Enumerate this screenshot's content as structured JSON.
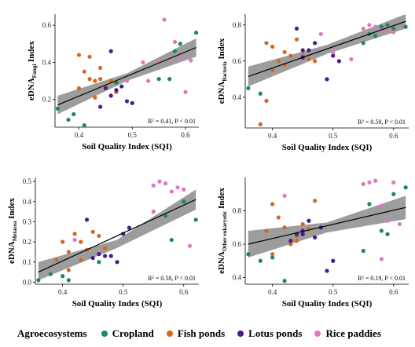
{
  "colors": {
    "Cropland": "#1a8a5a",
    "Fish ponds": "#d8661c",
    "Lotus ponds": "#4b1a8c",
    "Rice paddies": "#e276c3",
    "band": "#8c8c8c",
    "line": "#000000"
  },
  "legend": {
    "title": "Agroecosystems",
    "items": [
      "Cropland",
      "Fish ponds",
      "Lotus ponds",
      "Rice paddies"
    ]
  },
  "chart_data": [
    {
      "type": "scatter",
      "xlabel": "Soil Quality Index (SQI)",
      "ylabel_main": "eDNA",
      "ylabel_sub": "Fungi",
      "ylabel_suffix": " Index",
      "stats": "R² = 0.41,   P < 0.01",
      "xlim": [
        0.355,
        0.625
      ],
      "ylim": [
        0.05,
        0.66
      ],
      "xticks": [
        0.4,
        0.5,
        0.6
      ],
      "xtick_labels": [
        "0.4",
        "0.5",
        "0.6"
      ],
      "yticks": [
        0.2,
        0.4,
        0.6
      ],
      "ytick_labels": [
        "0.2",
        "0.4",
        "0.6"
      ],
      "fit": {
        "x": [
          0.36,
          0.62
        ],
        "y": [
          0.17,
          0.48
        ]
      },
      "band": {
        "x": [
          0.36,
          0.49,
          0.62
        ],
        "upper": [
          0.22,
          0.34,
          0.53
        ],
        "lower": [
          0.12,
          0.3,
          0.43
        ]
      },
      "series": [
        {
          "name": "Cropland",
          "x": [
            0.36,
            0.38,
            0.41,
            0.55,
            0.57,
            0.58,
            0.59,
            0.62,
            0.47,
            0.39
          ],
          "y": [
            0.15,
            0.09,
            0.06,
            0.31,
            0.31,
            0.46,
            0.5,
            0.56,
            0.29,
            0.12
          ]
        },
        {
          "name": "Fish ponds",
          "x": [
            0.4,
            0.41,
            0.42,
            0.43,
            0.44,
            0.42,
            0.45,
            0.47,
            0.43,
            0.44,
            0.4,
            0.46
          ],
          "y": [
            0.44,
            0.35,
            0.31,
            0.3,
            0.37,
            0.43,
            0.27,
            0.24,
            0.21,
            0.31,
            0.26,
            0.3
          ]
        },
        {
          "name": "Lotus ponds",
          "x": [
            0.45,
            0.46,
            0.48,
            0.49,
            0.5,
            0.46,
            0.47,
            0.44
          ],
          "y": [
            0.26,
            0.46,
            0.27,
            0.19,
            0.18,
            0.22,
            0.25,
            0.16
          ]
        },
        {
          "name": "Rice paddies",
          "x": [
            0.55,
            0.56,
            0.58,
            0.59,
            0.6,
            0.57,
            0.53,
            0.52,
            0.49,
            0.61
          ],
          "y": [
            0.41,
            0.63,
            0.51,
            0.43,
            0.24,
            0.42,
            0.3,
            0.4,
            0.3,
            0.41
          ]
        }
      ]
    },
    {
      "type": "scatter",
      "xlabel": "Soil Quality Index (SQI)",
      "ylabel_main": "eDNA",
      "ylabel_sub": "Bacteria",
      "ylabel_suffix": " Index",
      "stats": "R² = 0.50,   P < 0.01",
      "xlim": [
        0.355,
        0.625
      ],
      "ylim": [
        0.23,
        0.86
      ],
      "xticks": [
        0.4,
        0.5,
        0.6
      ],
      "xtick_labels": [
        "0.4",
        "0.5",
        "0.6"
      ],
      "yticks": [
        0.4,
        0.6,
        0.8
      ],
      "ytick_labels": [
        "0.4",
        "0.6",
        "0.8"
      ],
      "fit": {
        "x": [
          0.36,
          0.62
        ],
        "y": [
          0.515,
          0.82
        ]
      },
      "band": {
        "x": [
          0.36,
          0.49,
          0.62
        ],
        "upper": [
          0.57,
          0.69,
          0.86
        ],
        "lower": [
          0.46,
          0.64,
          0.78
        ]
      },
      "series": [
        {
          "name": "Cropland",
          "x": [
            0.36,
            0.38,
            0.55,
            0.56,
            0.58,
            0.59,
            0.6,
            0.62,
            0.57
          ],
          "y": [
            0.45,
            0.42,
            0.7,
            0.75,
            0.79,
            0.8,
            0.78,
            0.79,
            0.74
          ]
        },
        {
          "name": "Fish ponds",
          "x": [
            0.38,
            0.39,
            0.4,
            0.41,
            0.42,
            0.43,
            0.44,
            0.45,
            0.46,
            0.47,
            0.4,
            0.39,
            0.42
          ],
          "y": [
            0.25,
            0.38,
            0.68,
            0.6,
            0.65,
            0.63,
            0.72,
            0.63,
            0.61,
            0.6,
            0.55,
            0.7,
            0.58
          ]
        },
        {
          "name": "Lotus ponds",
          "x": [
            0.44,
            0.45,
            0.46,
            0.47,
            0.49,
            0.5,
            0.51,
            0.45
          ],
          "y": [
            0.78,
            0.62,
            0.66,
            0.7,
            0.5,
            0.63,
            0.6,
            0.66
          ]
        },
        {
          "name": "Rice paddies",
          "x": [
            0.48,
            0.5,
            0.53,
            0.55,
            0.56,
            0.57,
            0.58,
            0.59,
            0.6
          ],
          "y": [
            0.75,
            0.65,
            0.61,
            0.78,
            0.8,
            0.79,
            0.77,
            0.78,
            0.76
          ]
        }
      ]
    },
    {
      "type": "scatter",
      "xlabel": "Soil Quality Index (SQI)",
      "ylabel_main": "eDNA",
      "ylabel_sub": "Metazoa",
      "ylabel_suffix": " Index",
      "stats": "R² = 0.58,   P < 0.01",
      "xlim": [
        0.355,
        0.625
      ],
      "ylim": [
        -0.01,
        0.52
      ],
      "xticks": [
        0.4,
        0.5,
        0.6
      ],
      "xtick_labels": [
        "0.4",
        "0.5",
        "0.6"
      ],
      "yticks": [
        0.0,
        0.1,
        0.2,
        0.3,
        0.4,
        0.5
      ],
      "ytick_labels": [
        "0.0",
        "0.1",
        "0.2",
        "0.3",
        "0.4",
        "0.5"
      ],
      "fit": {
        "x": [
          0.36,
          0.62
        ],
        "y": [
          0.05,
          0.41
        ]
      },
      "band": {
        "x": [
          0.36,
          0.49,
          0.62
        ],
        "upper": [
          0.1,
          0.21,
          0.46
        ],
        "lower": [
          0.01,
          0.17,
          0.36
        ]
      },
      "series": [
        {
          "name": "Cropland",
          "x": [
            0.36,
            0.38,
            0.41,
            0.55,
            0.57,
            0.58,
            0.6,
            0.62,
            0.46,
            0.4
          ],
          "y": [
            0.01,
            0.04,
            0.01,
            0.35,
            0.33,
            0.21,
            0.4,
            0.31,
            0.1,
            0.03
          ]
        },
        {
          "name": "Fish ponds",
          "x": [
            0.39,
            0.4,
            0.41,
            0.42,
            0.43,
            0.44,
            0.45,
            0.46,
            0.47,
            0.41,
            0.43
          ],
          "y": [
            0.11,
            0.2,
            0.15,
            0.24,
            0.2,
            0.16,
            0.25,
            0.23,
            0.17,
            0.06,
            0.11
          ]
        },
        {
          "name": "Lotus ponds",
          "x": [
            0.44,
            0.45,
            0.46,
            0.47,
            0.49,
            0.5,
            0.51,
            0.48
          ],
          "y": [
            0.31,
            0.12,
            0.14,
            0.13,
            0.1,
            0.24,
            0.27,
            0.13
          ]
        },
        {
          "name": "Rice paddies",
          "x": [
            0.42,
            0.55,
            0.56,
            0.57,
            0.58,
            0.59,
            0.6,
            0.61,
            0.55
          ],
          "y": [
            0.21,
            0.48,
            0.5,
            0.49,
            0.45,
            0.47,
            0.46,
            0.18,
            0.35
          ]
        }
      ]
    },
    {
      "type": "scatter",
      "xlabel": "Soil Quality Index (SQI)",
      "ylabel_main": "eDNA",
      "ylabel_sub": "Other eukaryotic",
      "ylabel_suffix": " Index",
      "stats": "R² = 0.19,   P < 0.01",
      "xlim": [
        0.355,
        0.625
      ],
      "ylim": [
        0.36,
        1.0
      ],
      "xticks": [
        0.4,
        0.5,
        0.6
      ],
      "xtick_labels": [
        "0.4",
        "0.5",
        "0.6"
      ],
      "yticks": [
        0.4,
        0.6,
        0.8
      ],
      "ytick_labels": [
        "0.4",
        "0.6",
        "0.8"
      ],
      "fit": {
        "x": [
          0.36,
          0.62
        ],
        "y": [
          0.6,
          0.82
        ]
      },
      "band": {
        "x": [
          0.36,
          0.49,
          0.62
        ],
        "upper": [
          0.68,
          0.73,
          0.89
        ],
        "lower": [
          0.52,
          0.67,
          0.75
        ]
      },
      "series": [
        {
          "name": "Cropland",
          "x": [
            0.36,
            0.38,
            0.42,
            0.55,
            0.56,
            0.58,
            0.59,
            0.6,
            0.62,
            0.4
          ],
          "y": [
            0.54,
            0.5,
            0.38,
            0.56,
            0.84,
            0.68,
            0.66,
            0.9,
            0.94,
            0.52
          ]
        },
        {
          "name": "Fish ponds",
          "x": [
            0.39,
            0.4,
            0.41,
            0.42,
            0.43,
            0.44,
            0.45,
            0.46,
            0.47,
            0.4,
            0.44
          ],
          "y": [
            0.68,
            0.84,
            0.76,
            0.7,
            0.6,
            0.65,
            0.72,
            0.69,
            0.86,
            0.54,
            0.62
          ]
        },
        {
          "name": "Lotus ponds",
          "x": [
            0.43,
            0.44,
            0.45,
            0.46,
            0.48,
            0.49,
            0.5,
            0.45,
            0.47
          ],
          "y": [
            0.62,
            0.66,
            0.68,
            0.74,
            0.7,
            0.44,
            0.5,
            0.66,
            0.64
          ]
        },
        {
          "name": "Rice paddies",
          "x": [
            0.42,
            0.55,
            0.56,
            0.57,
            0.58,
            0.59,
            0.6,
            0.61,
            0.58
          ],
          "y": [
            0.89,
            0.96,
            0.97,
            0.98,
            0.83,
            0.74,
            0.97,
            0.72,
            0.51
          ]
        }
      ]
    }
  ]
}
